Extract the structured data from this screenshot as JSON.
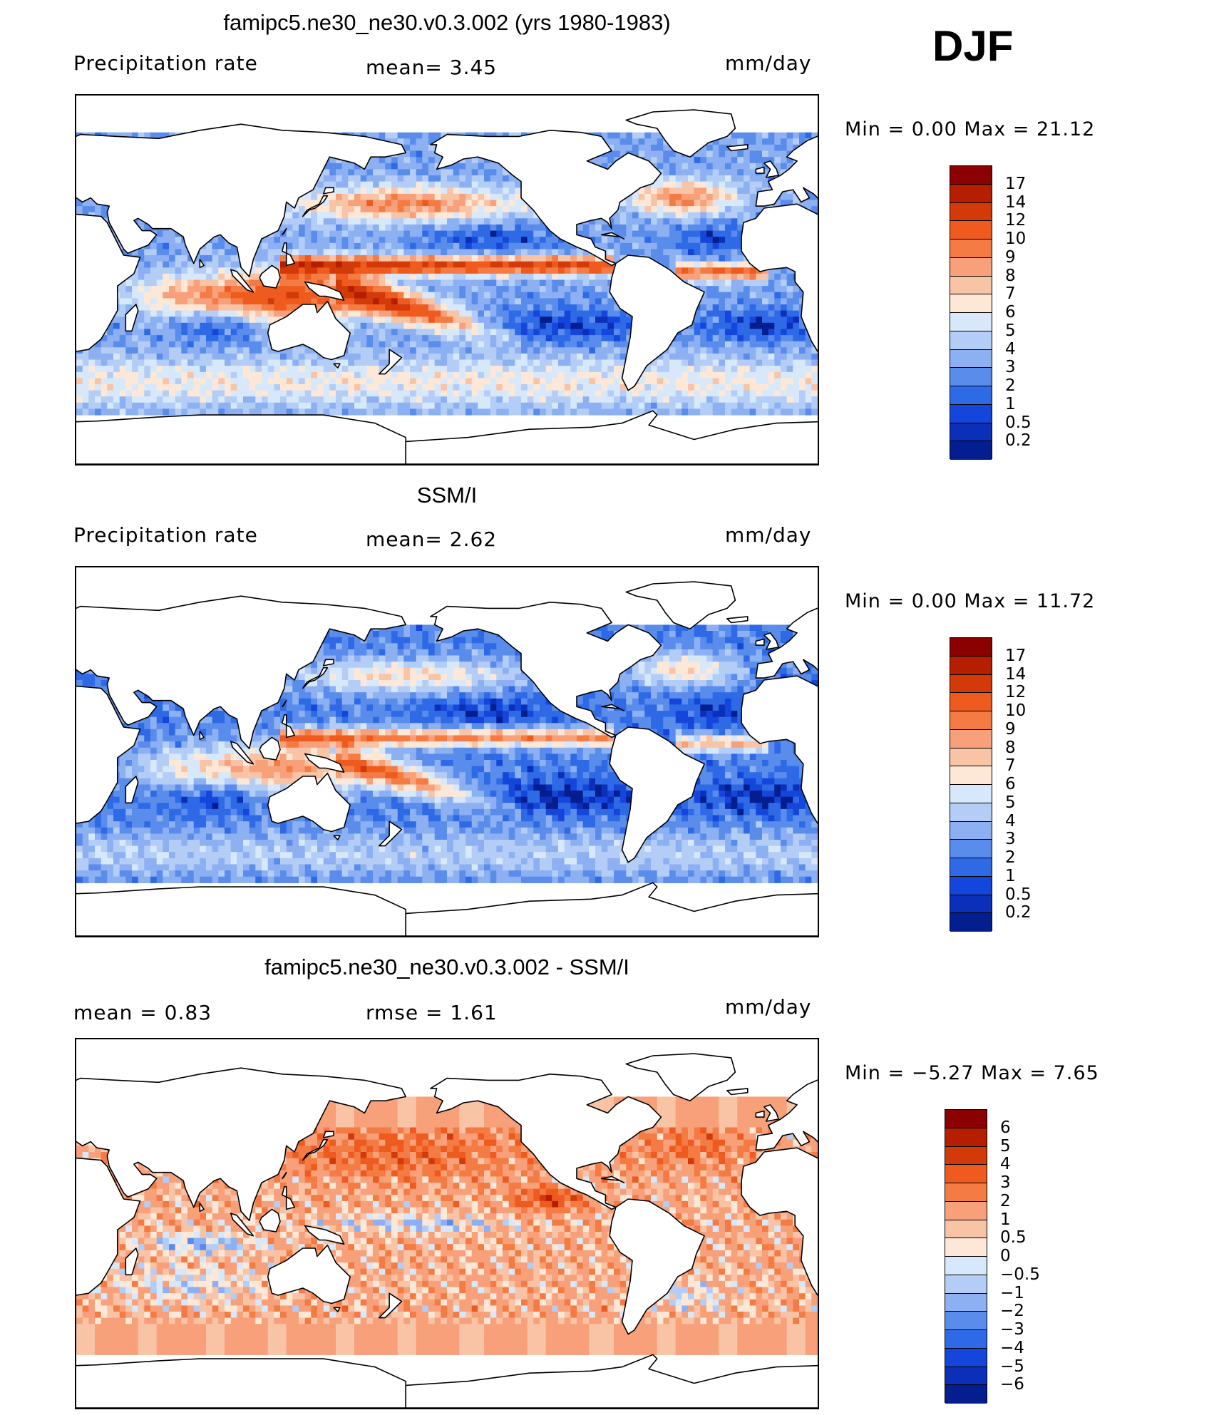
{
  "season_label": "DJF",
  "panels": [
    {
      "title": "famipc5.ne30_ne30.v0.3.002 (yrs 1980-1983)",
      "left_label": "Precipitation  rate",
      "center_label": "mean=     3.45",
      "units": "mm/day",
      "minmax": "Min  =     0.00  Max  =    21.12",
      "colorbar_ticks": [
        "17",
        "14",
        "12",
        "10",
        "9",
        "8",
        "7",
        "6",
        "5",
        "4",
        "3",
        "2",
        "1",
        "0.5",
        "0.2"
      ],
      "colorbar_colors": [
        "#8b0000",
        "#b51f00",
        "#d33a0a",
        "#ef5a1f",
        "#f47b43",
        "#f7a07a",
        "#f9c3a6",
        "#fde8d8",
        "#d7e8fa",
        "#b3cdf7",
        "#8cb0f2",
        "#5a8cec",
        "#2f6ae6",
        "#1546db",
        "#0b2fb8",
        "#041d8f"
      ],
      "field": "model"
    },
    {
      "title": "SSM/I",
      "left_label": "Precipitation  rate",
      "center_label": "mean=     2.62",
      "units": "mm/day",
      "minmax": "Min  =     0.00  Max  =    11.72",
      "colorbar_ticks": [
        "17",
        "14",
        "12",
        "10",
        "9",
        "8",
        "7",
        "6",
        "5",
        "4",
        "3",
        "2",
        "1",
        "0.5",
        "0.2"
      ],
      "colorbar_colors": [
        "#8b0000",
        "#b51f00",
        "#d33a0a",
        "#ef5a1f",
        "#f47b43",
        "#f7a07a",
        "#f9c3a6",
        "#fde8d8",
        "#d7e8fa",
        "#b3cdf7",
        "#8cb0f2",
        "#5a8cec",
        "#2f6ae6",
        "#1546db",
        "#0b2fb8",
        "#041d8f"
      ],
      "field": "obs"
    },
    {
      "title": "famipc5.ne30_ne30.v0.3.002 - SSM/I",
      "left_label": "mean  =     0.83",
      "center_label": "rmse  =     1.61",
      "units": "mm/day",
      "minmax": "Min  =   −5.27  Max  =     7.65",
      "colorbar_ticks": [
        "6",
        "5",
        "4",
        "3",
        "2",
        "1",
        "0.5",
        "0",
        "−0.5",
        "−1",
        "−2",
        "−3",
        "−4",
        "−5",
        "−6"
      ],
      "colorbar_colors": [
        "#8b0000",
        "#b51f00",
        "#d33a0a",
        "#ef5a1f",
        "#f47b43",
        "#f7a07a",
        "#f9c3a6",
        "#fde8d8",
        "#d7e8fa",
        "#b3cdf7",
        "#8cb0f2",
        "#5a8cec",
        "#2f6ae6",
        "#1546db",
        "#0b2fb8",
        "#041d8f"
      ],
      "field": "diff"
    }
  ]
}
